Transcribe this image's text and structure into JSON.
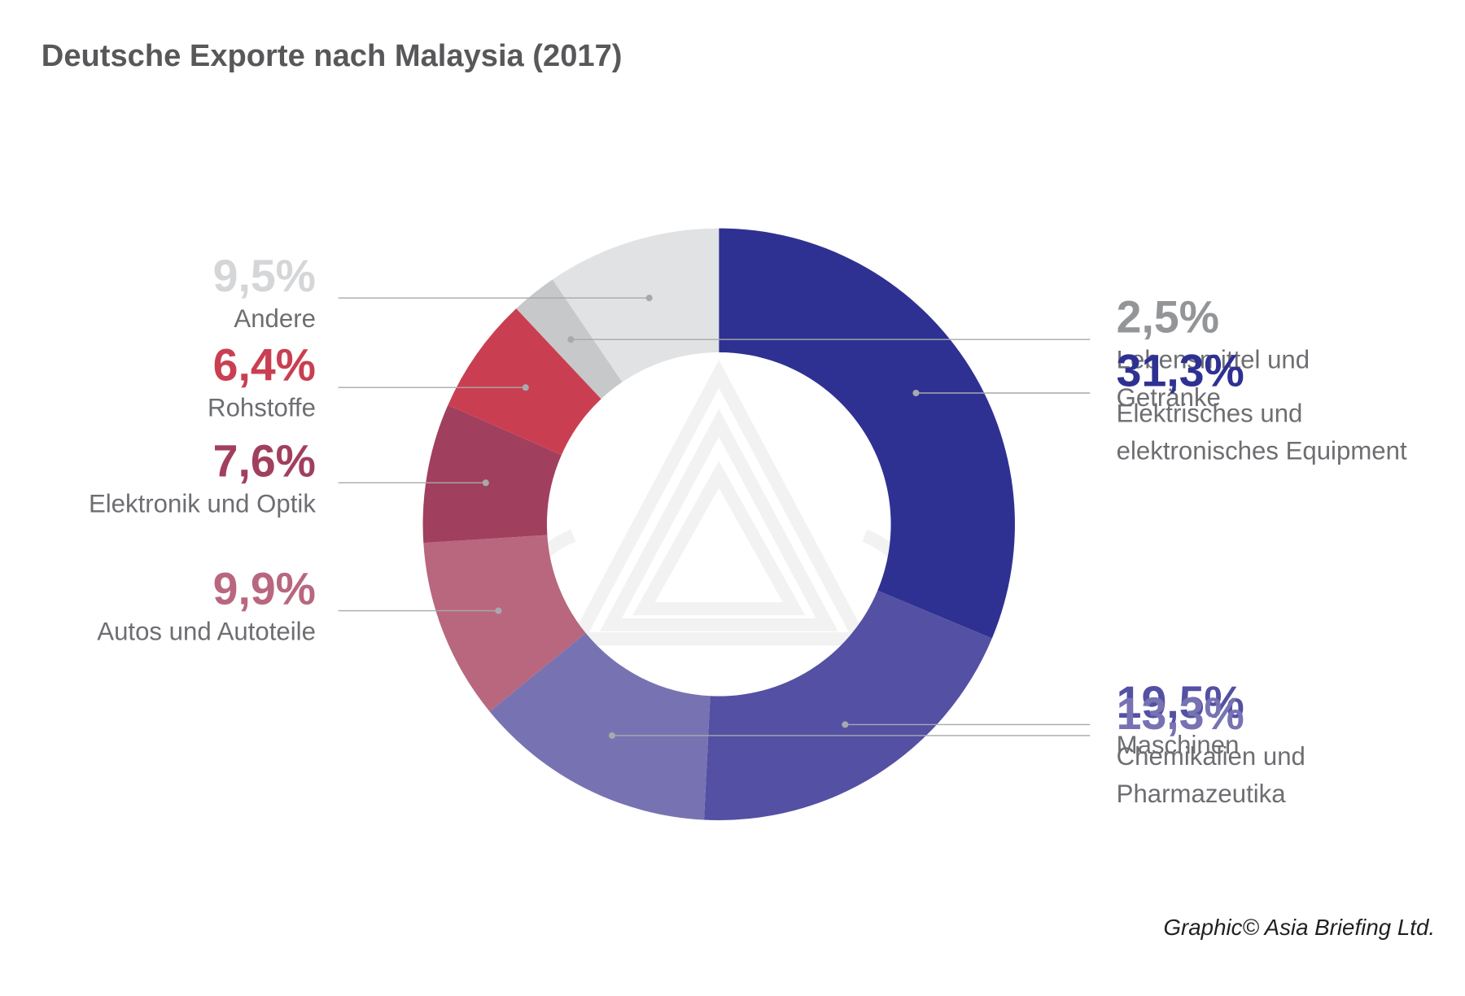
{
  "title": "Deutsche Exporte nach Malaysia (2017)",
  "credit": "Graphic© Asia Briefing Ltd.",
  "chart_data": {
    "type": "pie",
    "variant": "donut",
    "title": "Deutsche Exporte nach Malaysia (2017)",
    "unit": "%",
    "slices": [
      {
        "key": "elektrisch",
        "value": 31.3,
        "label": "31,3%",
        "category": "Elektrisches und\nelektronisches Equipment",
        "color": "#2e3192",
        "side": "right"
      },
      {
        "key": "maschinen",
        "value": 19.5,
        "label": "19,5%",
        "category": "Maschinen",
        "color": "#5450a3",
        "side": "right"
      },
      {
        "key": "chemie",
        "value": 13.3,
        "label": "13,3%",
        "category": "Chemikalien und\nPharmazeutika",
        "color": "#7773b3",
        "side": "right"
      },
      {
        "key": "autos",
        "value": 9.9,
        "label": "9,9%",
        "category": "Autos und Autoteile",
        "color": "#b8677f",
        "side": "left"
      },
      {
        "key": "elektronik",
        "value": 7.6,
        "label": "7,6%",
        "category": "Elektronik und Optik",
        "color": "#a13f5e",
        "side": "left"
      },
      {
        "key": "rohstoffe",
        "value": 6.4,
        "label": "6,4%",
        "category": "Rohstoffe",
        "color": "#c93f51",
        "side": "left"
      },
      {
        "key": "lebensmittel",
        "value": 2.5,
        "label": "2,5%",
        "category": "Lebensmittel und\nGetränke",
        "color": "#c7c8ca",
        "side": "right"
      },
      {
        "key": "andere",
        "value": 9.5,
        "label": "9,5%",
        "category": "Andere",
        "color": "#e1e2e4",
        "side": "left"
      }
    ],
    "legend": "none"
  }
}
